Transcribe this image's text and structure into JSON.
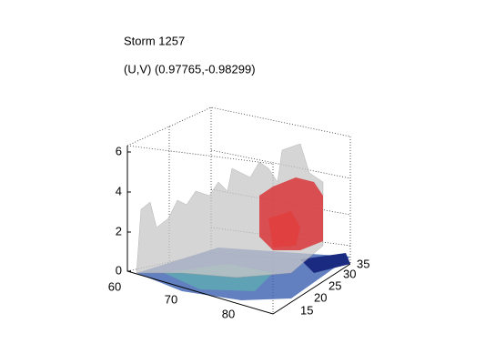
{
  "title": "Storm 1257",
  "subtitle": "(U,V) (0.97765,-0.98299)",
  "axes": {
    "z_ticks": [
      0,
      2,
      4,
      6
    ],
    "x_ticks": [
      60,
      70,
      80
    ],
    "y_ticks": [
      15,
      20,
      25,
      30,
      35
    ]
  }
}
